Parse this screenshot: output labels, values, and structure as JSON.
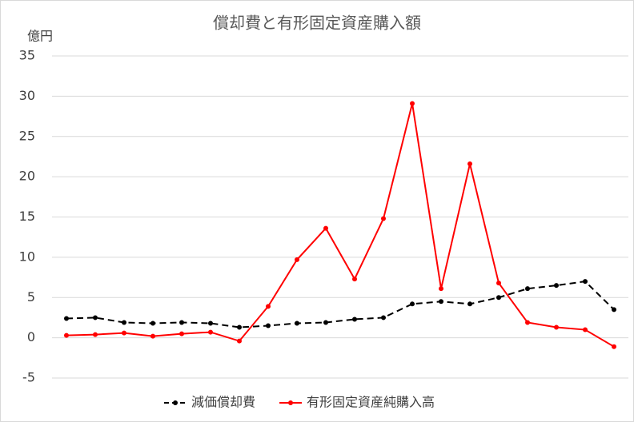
{
  "chart_data": {
    "type": "line",
    "title": "償却費と有形固定資産購入額",
    "y_unit": "億円",
    "categories": [
      null,
      null,
      null,
      null,
      null,
      null,
      null,
      null,
      null,
      null,
      null,
      null,
      null,
      null,
      null,
      null,
      null,
      null,
      null,
      null
    ],
    "series": [
      {
        "name": "減価償却費",
        "color": "#000000",
        "dashed": true,
        "values": [
          2.4,
          2.5,
          1.9,
          1.8,
          1.9,
          1.8,
          1.3,
          1.5,
          1.8,
          1.9,
          2.3,
          2.5,
          4.2,
          4.5,
          4.2,
          5.0,
          6.1,
          6.5,
          7.0,
          3.5
        ]
      },
      {
        "name": "有形固定資産純購入高",
        "color": "#ff0000",
        "dashed": false,
        "values": [
          0.3,
          0.4,
          0.6,
          0.2,
          0.5,
          0.7,
          -0.4,
          3.9,
          9.7,
          13.6,
          7.3,
          14.8,
          29.1,
          6.1,
          21.6,
          6.8,
          1.9,
          1.3,
          1.0,
          -1.1
        ]
      }
    ],
    "ylim": [
      -5,
      35
    ],
    "yticks": [
      -5,
      0,
      5,
      10,
      15,
      20,
      25,
      30,
      35
    ],
    "grid": true,
    "legend": "bottom"
  }
}
